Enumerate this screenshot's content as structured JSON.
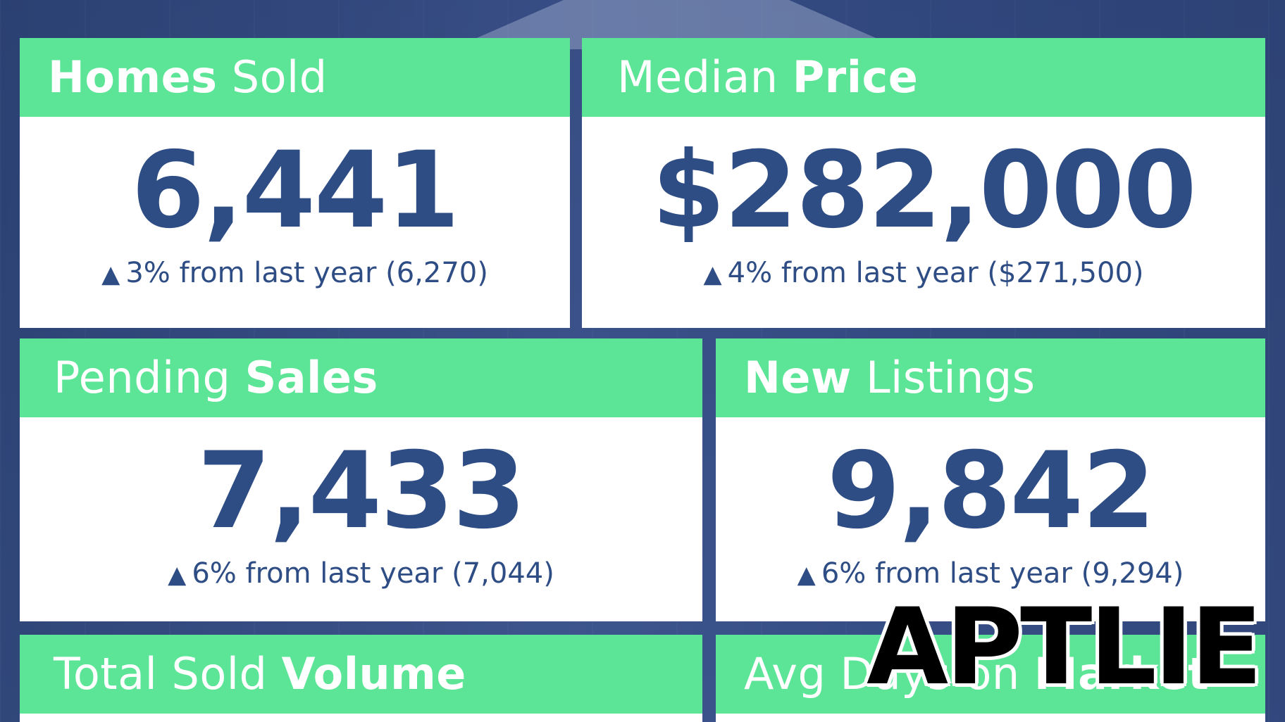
{
  "cards": {
    "homes_sold": {
      "title_bold": "Homes",
      "title_light": "Sold",
      "value": "6,441",
      "arrow": "▲",
      "change": "3% from last year (6,270)"
    },
    "median_price": {
      "title_light": "Median",
      "title_bold": "Price",
      "value": "$282,000",
      "arrow": "▲",
      "change": "4% from last year ($271,500)"
    },
    "pending_sales": {
      "title_light": "Pending",
      "title_bold": "Sales",
      "value": "7,433",
      "arrow": "▲",
      "change": "6% from last year (7,044)"
    },
    "new_listings": {
      "title_bold": "New",
      "title_light": "Listings",
      "value": "9,842",
      "arrow": "▲",
      "change": "6% from last year (9,294)"
    },
    "total_sold_volume": {
      "title_light": "Total Sold",
      "title_bold": "Volume"
    },
    "avg_days_on_market": {
      "title_light": "Avg Days on",
      "title_bold": "Market"
    }
  },
  "watermark": "APTLIE",
  "colors": {
    "header_green": "#5ce597",
    "value_blue": "#2f4d85",
    "background_blue": "#3c5387"
  }
}
